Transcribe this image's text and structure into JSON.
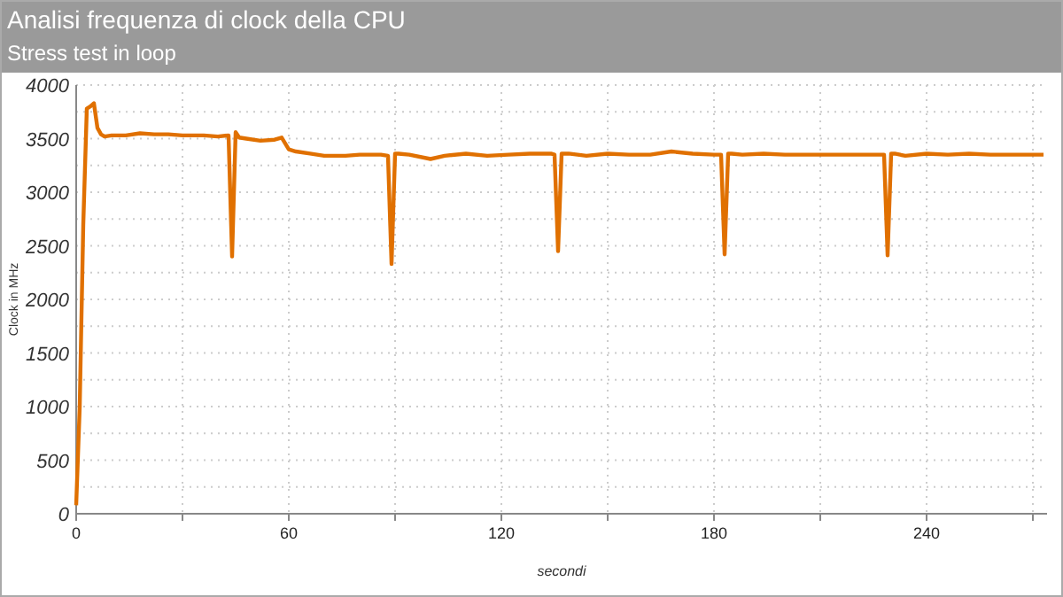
{
  "chart_data": {
    "type": "line",
    "title": "Analisi frequenza di clock della CPU",
    "subtitle": "Stress test in loop",
    "xlabel": "secondi",
    "ylabel": "Clock in MHz",
    "grid": true,
    "marker": "none",
    "line_style": "solid",
    "xlim": [
      0,
      274
    ],
    "xticks": [
      0,
      {
        "value": 30,
        "label": null
      },
      60,
      {
        "value": 90,
        "label": null
      },
      120,
      {
        "value": 150,
        "label": null
      },
      180,
      {
        "value": 210,
        "label": null
      },
      240,
      {
        "value": 270,
        "label": null
      }
    ],
    "ylim": [
      0,
      4000
    ],
    "yticks": [
      0,
      {
        "value": 250,
        "label": null
      },
      500,
      {
        "value": 750,
        "label": null
      },
      1000,
      {
        "value": 1250,
        "label": null
      },
      1500,
      {
        "value": 1750,
        "label": null
      },
      2000,
      {
        "value": 2250,
        "label": null
      },
      2500,
      {
        "value": 2750,
        "label": null
      },
      3000,
      {
        "value": 3250,
        "label": null
      },
      3500,
      {
        "value": 3750,
        "label": null
      },
      4000
    ],
    "x": [
      0,
      1,
      2,
      3,
      4,
      5,
      6,
      7,
      8,
      10,
      14,
      18,
      22,
      26,
      30,
      36,
      40,
      43,
      44,
      45,
      46,
      48,
      52,
      56,
      58,
      60,
      62,
      66,
      70,
      76,
      80,
      86,
      88,
      89,
      90,
      91,
      94,
      100,
      104,
      110,
      116,
      122,
      128,
      134,
      135,
      136,
      137,
      139,
      144,
      150,
      156,
      162,
      168,
      174,
      180,
      182,
      183,
      184,
      185,
      188,
      194,
      200,
      206,
      212,
      218,
      224,
      228,
      229,
      230,
      231,
      234,
      240,
      246,
      252,
      258,
      264,
      270,
      273
    ],
    "series": [
      {
        "color": "#e07000",
        "values": [
          80,
          1000,
          2700,
          3780,
          3800,
          3830,
          3600,
          3540,
          3520,
          3530,
          3530,
          3550,
          3540,
          3540,
          3530,
          3530,
          3520,
          3530,
          2400,
          3560,
          3510,
          3500,
          3480,
          3490,
          3510,
          3400,
          3380,
          3360,
          3340,
          3340,
          3350,
          3350,
          3340,
          2330,
          3360,
          3360,
          3350,
          3310,
          3340,
          3360,
          3340,
          3350,
          3360,
          3360,
          3350,
          2450,
          3360,
          3360,
          3340,
          3360,
          3350,
          3350,
          3380,
          3360,
          3350,
          3350,
          2420,
          3360,
          3360,
          3350,
          3360,
          3350,
          3350,
          3350,
          3350,
          3350,
          3350,
          2410,
          3360,
          3360,
          3340,
          3360,
          3350,
          3360,
          3350,
          3350,
          3350,
          3350
        ]
      }
    ]
  }
}
